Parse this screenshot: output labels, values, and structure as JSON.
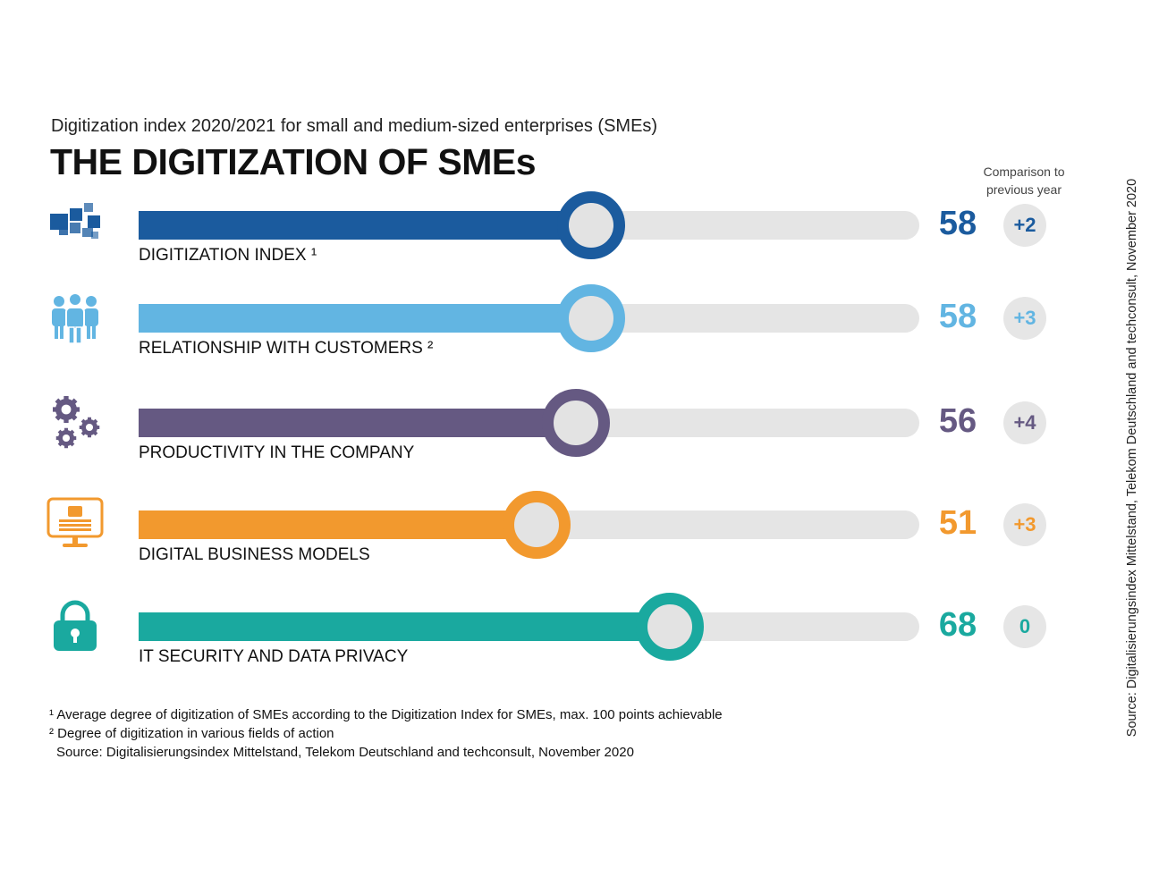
{
  "header": {
    "subtitle": "Digitization index 2020/2021 for small and medium-sized enterprises (SMEs)",
    "title": "THE DIGITIZATION OF SMEs",
    "comparison_heading_line1": "Comparison to",
    "comparison_heading_line2": "previous year"
  },
  "icons": [
    "blocks-icon",
    "people-icon",
    "gears-icon",
    "monitor-icon",
    "padlock-icon"
  ],
  "chart_data": {
    "type": "bar",
    "orientation": "horizontal",
    "xlim": [
      0,
      100
    ],
    "categories": [
      "DIGITIZATION INDEX ¹",
      "RELATIONSHIP WITH CUSTOMERS ²",
      "PRODUCTIVITY IN THE COMPANY",
      "DIGITAL BUSINESS MODELS",
      "IT SECURITY AND DATA PRIVACY"
    ],
    "values": [
      58,
      58,
      56,
      51,
      68
    ],
    "value_labels": [
      "58",
      "58",
      "56",
      "51",
      "68"
    ],
    "change_vs_previous_year": [
      "+2",
      "+3",
      "+4",
      "+3",
      "0"
    ],
    "colors": [
      "#1b5b9e",
      "#62b5e2",
      "#655982",
      "#f2992e",
      "#1aa99f"
    ]
  },
  "footnotes": {
    "note1": "¹ Average degree of digitization of SMEs according to the Digitization Index for SMEs, max. 100 points achievable",
    "note2": "² Degree of digitization in various fields of action",
    "source": "Source: Digitalisierungsindex Mittelstand, Telekom Deutschland and techconsult, November 2020"
  },
  "side_source": "Source: Digitalisierungsindex Mittelstand, Telekom Deutschland and techconsult, November 2020"
}
